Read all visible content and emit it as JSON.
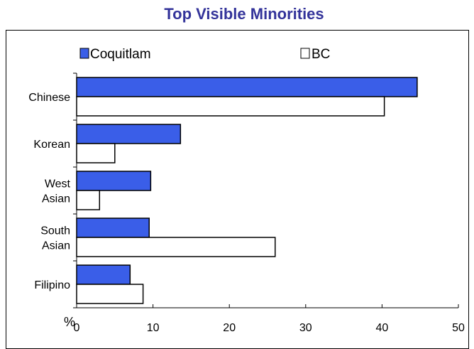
{
  "chart_data": {
    "type": "bar",
    "orientation": "horizontal",
    "title": "Top Visible Minorities",
    "xlabel": "%",
    "ylabel": "",
    "categories": [
      [
        "Chinese"
      ],
      [
        "Korean"
      ],
      [
        "West",
        "Asian"
      ],
      [
        "South",
        "Asian"
      ],
      [
        "Filipino"
      ]
    ],
    "series": [
      {
        "name": "Coquitlam",
        "color": "#3a5ee8",
        "values": [
          44.6,
          13.6,
          9.7,
          9.5,
          7.0
        ]
      },
      {
        "name": "BC",
        "color": "#ffffff",
        "values": [
          40.3,
          5.0,
          3.0,
          26.0,
          8.7
        ]
      }
    ],
    "xlim": [
      0,
      50
    ],
    "x_ticks": [
      "0",
      "10",
      "20",
      "30",
      "40",
      "50"
    ],
    "grid": false,
    "legend_position": "top"
  },
  "colors": {
    "title": "#33339a",
    "bar_stroke": "#000000"
  }
}
